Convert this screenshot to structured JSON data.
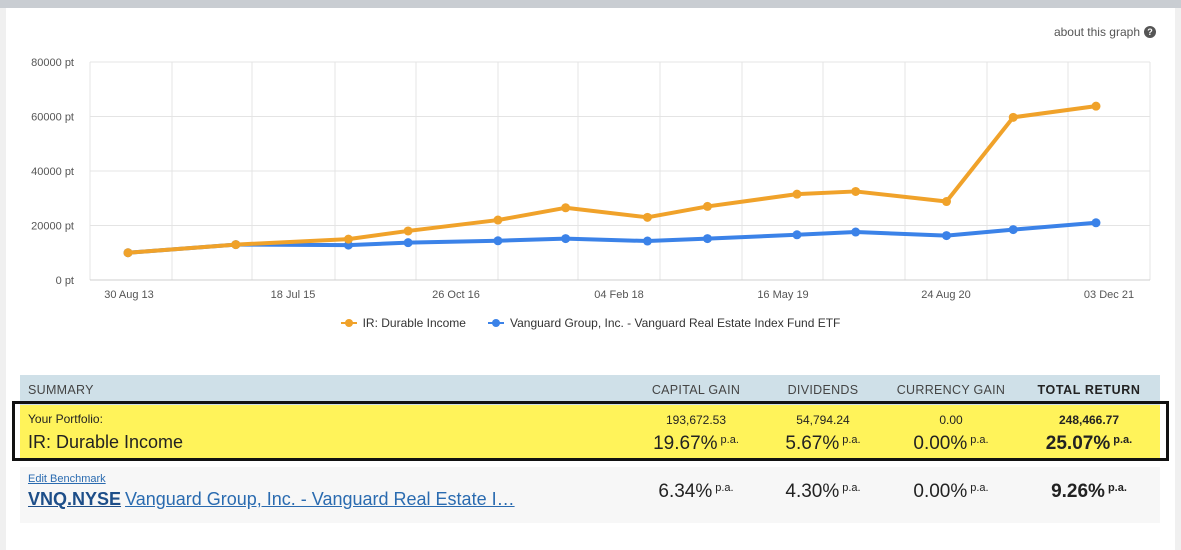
{
  "about_link": "about this graph",
  "about_icon": "question-icon",
  "chart_data": {
    "type": "line",
    "y_tick_labels": [
      "0 pt",
      "20000 pt",
      "40000 pt",
      "60000 pt",
      "80000 pt"
    ],
    "ylim": [
      0,
      80000
    ],
    "x_tick_labels": [
      "30 Aug 13",
      "18 Jul 15",
      "26 Oct 16",
      "04 Feb 18",
      "16 May 19",
      "24 Aug 20",
      "03 Dec 21"
    ],
    "x": [
      "2013-08-30",
      "2014-08-01",
      "2015-07-18",
      "2016-01-20",
      "2016-10-26",
      "2017-05-25",
      "2018-02-04",
      "2018-08-10",
      "2019-05-16",
      "2019-11-15",
      "2020-08-24",
      "2021-03-20",
      "2021-12-03"
    ],
    "series": [
      {
        "name": "IR: Durable Income",
        "color": "#f0a22a",
        "values": [
          10000,
          13000,
          15000,
          18000,
          22000,
          26500,
          23000,
          27000,
          31500,
          32500,
          28800,
          59700,
          63800
        ]
      },
      {
        "name": "Vanguard Group, Inc. - Vanguard Real Estate Index Fund ETF",
        "color": "#3b82e8",
        "values": [
          10000,
          13000,
          12800,
          13700,
          14400,
          15200,
          14300,
          15200,
          16600,
          17600,
          16300,
          18500,
          21000
        ]
      }
    ],
    "grid": true,
    "legend_position": "bottom-center"
  },
  "summary": {
    "header": {
      "summary": "SUMMARY",
      "capital_gain": "CAPITAL GAIN",
      "dividends": "DIVIDENDS",
      "currency_gain": "CURRENCY GAIN",
      "total_return": "TOTAL RETURN"
    },
    "portfolio": {
      "label": "Your Portfolio:",
      "name": "IR: Durable Income",
      "capital_gain_amount": "193,672.53",
      "capital_gain_pct": "19.67%",
      "dividends_amount": "54,794.24",
      "dividends_pct": "5.67%",
      "currency_gain_amount": "0.00",
      "currency_gain_pct": "0.00%",
      "total_return_amount": "248,466.77",
      "total_return_pct": "25.07%",
      "pa": "p.a."
    },
    "benchmark": {
      "edit_label": "Edit Benchmark",
      "ticker": "VNQ.NYSE",
      "name": "Vanguard Group, Inc. - Vanguard Real Estate I…",
      "capital_gain_pct": "6.34%",
      "dividends_pct": "4.30%",
      "currency_gain_pct": "0.00%",
      "total_return_pct": "9.26%",
      "pa": "p.a."
    }
  }
}
